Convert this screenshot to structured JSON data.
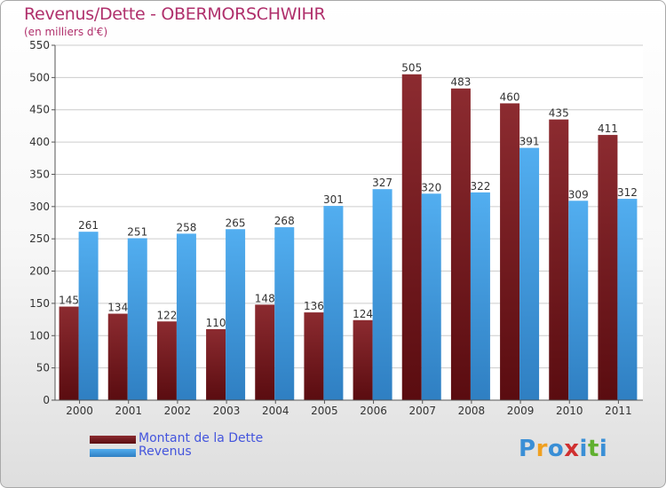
{
  "title": "Revenus/Dette - OBERMORSCHWIHR",
  "unit_label": "(en milliers d'€)",
  "logo": {
    "letters": [
      "P",
      "r",
      "o",
      "x",
      "i",
      "t",
      "i"
    ],
    "colors": [
      "#3a8fd6",
      "#f0a020",
      "#3a8fd6",
      "#d03030",
      "#3a8fd6",
      "#60b030",
      "#3a8fd6"
    ]
  },
  "chart_data": {
    "type": "bar",
    "categories": [
      "2000",
      "2001",
      "2002",
      "2003",
      "2004",
      "2005",
      "2006",
      "2007",
      "2008",
      "2009",
      "2010",
      "2011"
    ],
    "series": [
      {
        "name": "Montant de la Dette",
        "color": "#7a1f24",
        "values": [
          145,
          134,
          122,
          110,
          148,
          136,
          124,
          505,
          483,
          460,
          435,
          411
        ]
      },
      {
        "name": "Revenus",
        "color": "#4aa3e8",
        "values": [
          261,
          251,
          258,
          265,
          268,
          301,
          327,
          320,
          322,
          391,
          309,
          312
        ]
      }
    ],
    "y_ticks": [
      "0",
      "50",
      "100",
      "150",
      "200",
      "250",
      "300",
      "350",
      "400",
      "450",
      "500",
      "550"
    ],
    "ylim": [
      0,
      550
    ],
    "grid": true,
    "legend_position": "bottom-left"
  }
}
